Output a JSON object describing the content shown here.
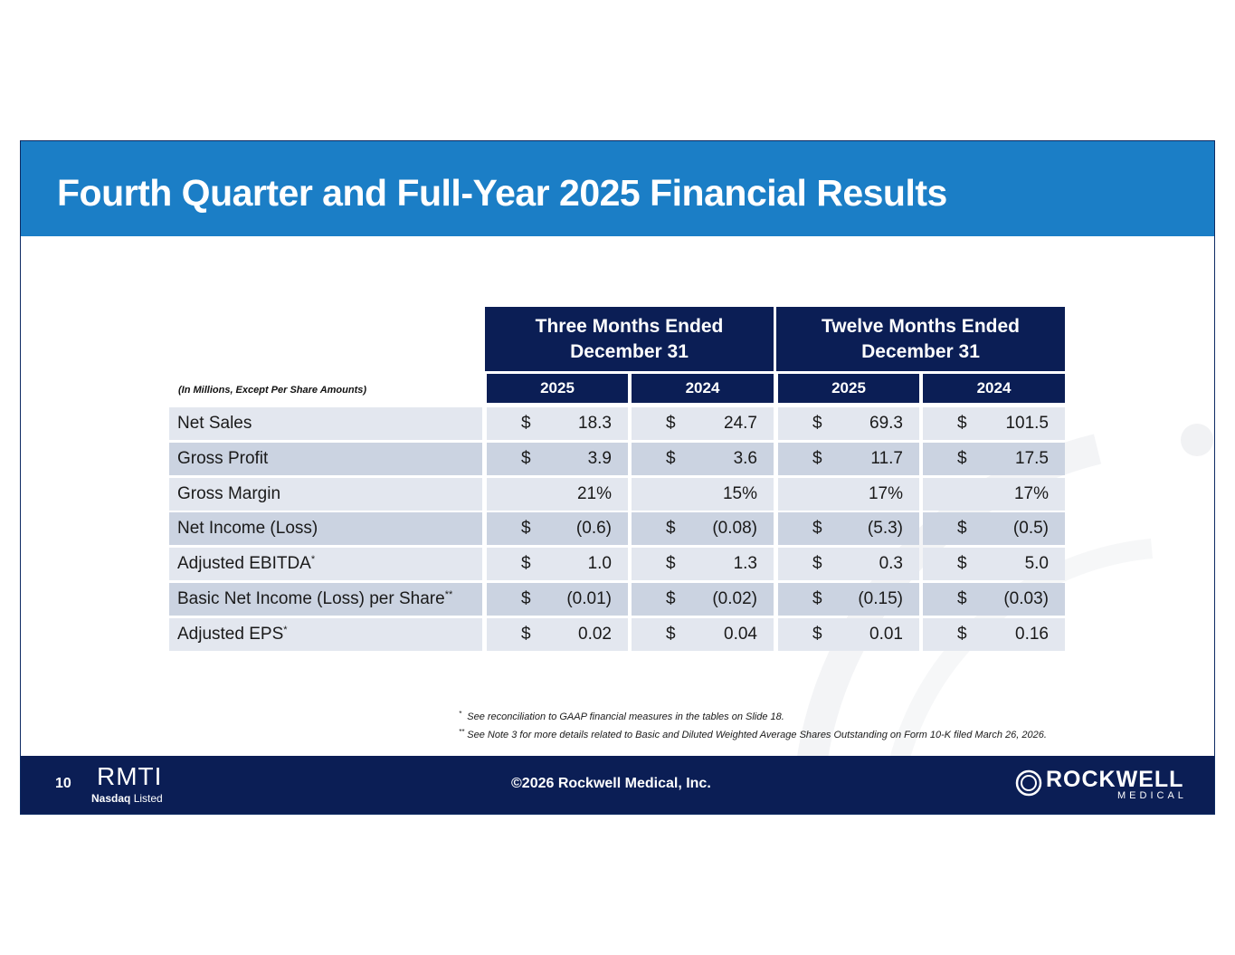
{
  "slide": {
    "title": "Fourth Quarter and Full-Year 2025 Financial Results"
  },
  "table": {
    "units_label": "(In Millions, Except Per Share Amounts)",
    "groups": [
      {
        "line1": "Three Months Ended",
        "line2": "December 31"
      },
      {
        "line1": "Twelve Months Ended",
        "line2": "December 31"
      }
    ],
    "years": [
      "2025",
      "2024",
      "2025",
      "2024"
    ],
    "rows": [
      {
        "label": "Net Sales",
        "mark": "",
        "cells": [
          {
            "d": "$",
            "v": "18.3"
          },
          {
            "d": "$",
            "v": "24.7"
          },
          {
            "d": "$",
            "v": "69.3"
          },
          {
            "d": "$",
            "v": "101.5"
          }
        ]
      },
      {
        "label": "Gross Profit",
        "mark": "",
        "cells": [
          {
            "d": "$",
            "v": "3.9"
          },
          {
            "d": "$",
            "v": "3.6"
          },
          {
            "d": "$",
            "v": "11.7"
          },
          {
            "d": "$",
            "v": "17.5"
          }
        ]
      },
      {
        "label": "Gross Margin",
        "mark": "",
        "cells": [
          {
            "d": "",
            "v": "21%"
          },
          {
            "d": "",
            "v": "15%"
          },
          {
            "d": "",
            "v": "17%"
          },
          {
            "d": "",
            "v": "17%"
          }
        ]
      },
      {
        "label": "Net Income (Loss)",
        "mark": "",
        "cells": [
          {
            "d": "$",
            "v": "(0.6)"
          },
          {
            "d": "$",
            "v": "(0.08)"
          },
          {
            "d": "$",
            "v": "(5.3)"
          },
          {
            "d": "$",
            "v": "(0.5)"
          }
        ]
      },
      {
        "label": "Adjusted EBITDA",
        "mark": "*",
        "cells": [
          {
            "d": "$",
            "v": "1.0"
          },
          {
            "d": "$",
            "v": "1.3"
          },
          {
            "d": "$",
            "v": "0.3"
          },
          {
            "d": "$",
            "v": "5.0"
          }
        ]
      },
      {
        "label": "Basic Net Income (Loss) per Share",
        "mark": "**",
        "cells": [
          {
            "d": "$",
            "v": "(0.01)"
          },
          {
            "d": "$",
            "v": "(0.02)"
          },
          {
            "d": "$",
            "v": "(0.15)"
          },
          {
            "d": "$",
            "v": "(0.03)"
          }
        ]
      },
      {
        "label": "Adjusted EPS",
        "mark": "*",
        "cells": [
          {
            "d": "$",
            "v": "0.02"
          },
          {
            "d": "$",
            "v": "0.04"
          },
          {
            "d": "$",
            "v": "0.01"
          },
          {
            "d": "$",
            "v": "0.16"
          }
        ]
      }
    ]
  },
  "footnotes": [
    {
      "mark": "*",
      "text": "See reconciliation to GAAP financial measures in the tables on Slide 18."
    },
    {
      "mark": "**",
      "text": "See Note 3 for more details related to Basic and Diluted Weighted Average Shares Outstanding on Form 10-K filed March 26, 2026."
    }
  ],
  "footer": {
    "page_number": "10",
    "ticker": "RMTI",
    "exchange_bold": "Nasdaq",
    "exchange_rest": "Listed",
    "copyright": "©2026 Rockwell Medical, Inc.",
    "brand": "ROCKWELL",
    "brand_sub": "MEDICAL"
  },
  "colors": {
    "banner": "#1b7ec6",
    "navy": "#0b1e55",
    "row_light": "#e3e7ef",
    "row_dark": "#cbd3e1"
  }
}
